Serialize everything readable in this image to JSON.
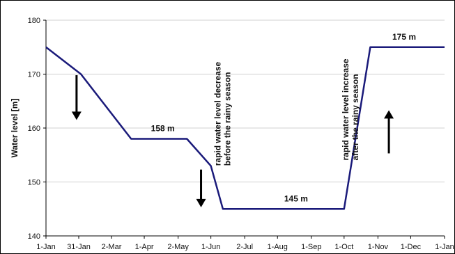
{
  "chart_data": {
    "type": "line",
    "title": "",
    "xlabel": "",
    "ylabel": "Water level [m]",
    "ylim": [
      140,
      180
    ],
    "yticks": [
      140,
      150,
      160,
      170,
      180
    ],
    "grid": "horizontal",
    "xticks": [
      {
        "date": "2001-01-01",
        "label": "1-Jan"
      },
      {
        "date": "2001-01-31",
        "label": "31-Jan"
      },
      {
        "date": "2001-03-02",
        "label": "2-Mar"
      },
      {
        "date": "2001-04-01",
        "label": "1-Apr"
      },
      {
        "date": "2001-05-02",
        "label": "2-May"
      },
      {
        "date": "2001-06-01",
        "label": "1-Jun"
      },
      {
        "date": "2001-07-02",
        "label": "2-Jul"
      },
      {
        "date": "2001-08-01",
        "label": "1-Aug"
      },
      {
        "date": "2001-09-01",
        "label": "1-Sep"
      },
      {
        "date": "2001-10-01",
        "label": "1-Oct"
      },
      {
        "date": "2001-11-01",
        "label": "1-Nov"
      },
      {
        "date": "2001-12-01",
        "label": "1-Dec"
      },
      {
        "date": "2002-01-01",
        "label": "1-Jan"
      }
    ],
    "series": [
      {
        "color": "#1a1a7a",
        "points": [
          {
            "x": "2001-01-01",
            "y": 175
          },
          {
            "x": "2001-02-02",
            "y": 170
          },
          {
            "x": "2001-03-20",
            "y": 158
          },
          {
            "x": "2001-05-10",
            "y": 158
          },
          {
            "x": "2001-06-01",
            "y": 153
          },
          {
            "x": "2001-06-12",
            "y": 145
          },
          {
            "x": "2001-10-01",
            "y": 145
          },
          {
            "x": "2001-10-25",
            "y": 175
          },
          {
            "x": "2002-01-01",
            "y": 175
          }
        ]
      }
    ],
    "level_labels": [
      {
        "text": "158 m",
        "x": "2001-04-18",
        "y": 159.4
      },
      {
        "text": "145 m",
        "x": "2001-08-18",
        "y": 146.4
      },
      {
        "text": "175 m",
        "x": "2001-11-25",
        "y": 176.4
      }
    ],
    "annotations": [
      {
        "lines": [
          "rapid water level decrease",
          "before the rainy season"
        ],
        "x": "2001-06-10",
        "y": 153
      },
      {
        "lines": [
          "rapid water level increase",
          "after the rainy season"
        ],
        "x": "2001-10-05",
        "y": 154
      }
    ],
    "arrows": [
      {
        "direction": "down",
        "x": "2001-01-29",
        "y_from": 169.8,
        "y_to": 161.5
      },
      {
        "direction": "down",
        "x": "2001-05-23",
        "y_from": 152.3,
        "y_to": 145.3
      },
      {
        "direction": "up",
        "x": "2001-11-11",
        "y_from": 155.3,
        "y_to": 163.3
      }
    ]
  }
}
